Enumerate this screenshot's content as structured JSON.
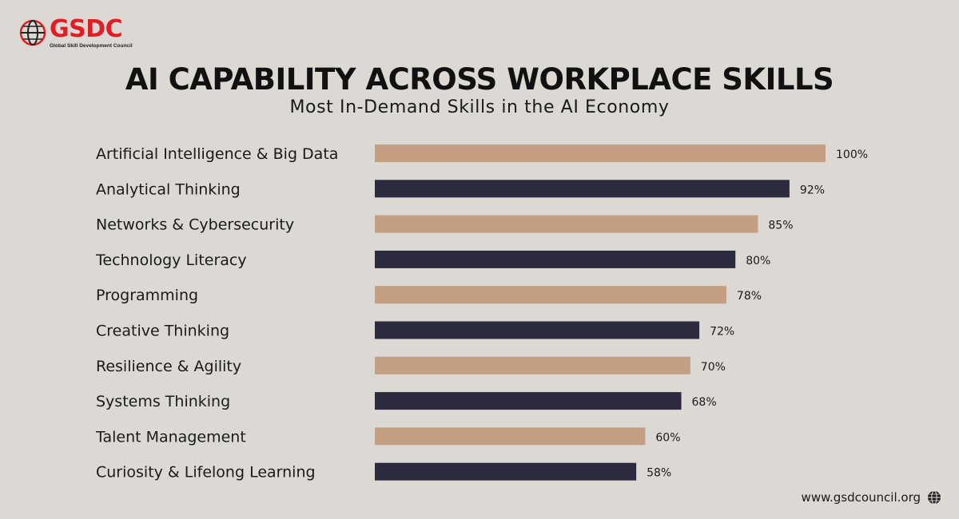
{
  "brand": {
    "name": "GSDC",
    "tagline": "Global Skill Development Council"
  },
  "header": {
    "title": "AI CAPABILITY ACROSS WORKPLACE SKILLS",
    "subtitle": "Most In-Demand Skills in the AI Economy"
  },
  "footer": {
    "url": "www.gsdcouncil.org",
    "icon": "globe-icon"
  },
  "colors": {
    "background": "#dcd8d4",
    "bar_light": "#c49f82",
    "bar_dark": "#2b2a3e",
    "brand_red": "#e21d24"
  },
  "chart_data": {
    "type": "bar",
    "orientation": "horizontal",
    "categories": [
      "Artificial Intelligence & Big Data",
      "Analytical Thinking",
      "Networks & Cybersecurity",
      "Technology Literacy",
      "Programming",
      "Creative Thinking",
      "Resilience & Agility",
      "Systems Thinking",
      "Talent Management",
      "Curiosity & Lifelong Learning"
    ],
    "values": [
      100,
      92,
      85,
      80,
      78,
      72,
      70,
      68,
      60,
      58
    ],
    "value_labels": [
      "100%",
      "92%",
      "85%",
      "80%",
      "78%",
      "72%",
      "70%",
      "68%",
      "60%",
      "58%"
    ],
    "xlim": [
      0,
      100
    ],
    "bar_colors": [
      "#c49f82",
      "#2b2a3e",
      "#c49f82",
      "#2b2a3e",
      "#c49f82",
      "#2b2a3e",
      "#c49f82",
      "#2b2a3e",
      "#c49f82",
      "#2b2a3e"
    ],
    "grid": false,
    "legend": "none"
  }
}
